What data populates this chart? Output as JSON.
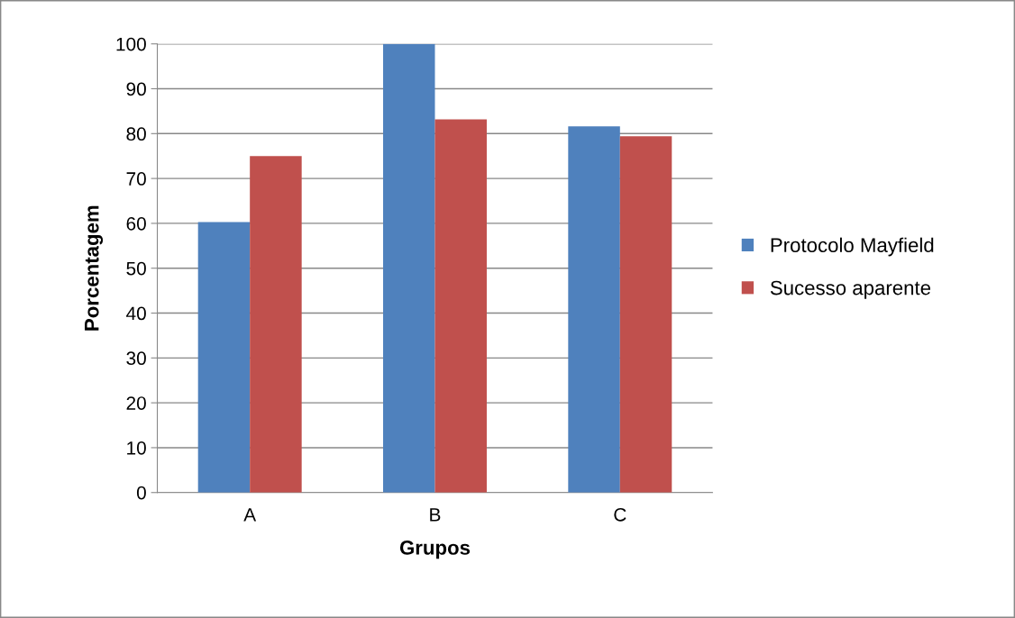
{
  "chart_data": {
    "type": "bar",
    "xlabel": "Grupos",
    "ylabel": "Porcentagem",
    "categories": [
      "A",
      "B",
      "C"
    ],
    "series": [
      {
        "name": "Protocolo Mayfield",
        "color": "#4f81bd",
        "values": [
          60.3,
          100,
          81.6
        ]
      },
      {
        "name": "Sucesso aparente",
        "color": "#c0504d",
        "values": [
          75,
          83.2,
          79.4
        ]
      }
    ],
    "ylim": [
      0,
      100
    ],
    "yticks": [
      0,
      10,
      20,
      30,
      40,
      50,
      60,
      70,
      80,
      90,
      100
    ],
    "grid": "y",
    "legend": "right"
  }
}
